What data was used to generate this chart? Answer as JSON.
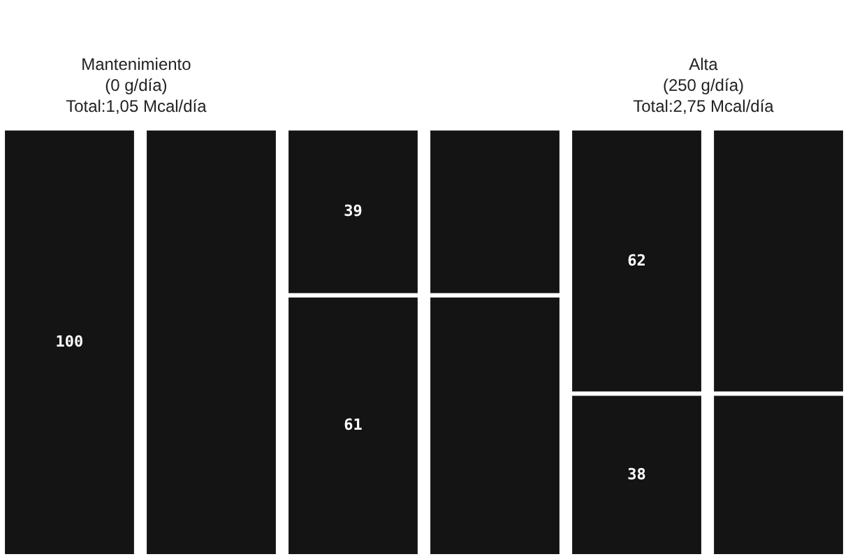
{
  "chart_data": {
    "type": "bar",
    "stacked": true,
    "categories": [
      null,
      null,
      null,
      null,
      null,
      null
    ],
    "series": [
      {
        "color": "#141414",
        "values": [
          100,
          100,
          61,
          61,
          38,
          38
        ],
        "value_labels": [
          "100",
          null,
          "61",
          null,
          "38",
          null
        ]
      },
      {
        "color": "#141414",
        "values": [
          null,
          null,
          39,
          39,
          62,
          62
        ],
        "value_labels": [
          null,
          null,
          "39",
          null,
          "62",
          null
        ]
      }
    ],
    "annotations": [
      "Mantenimiento\n(0 g/día)\nTotal:1,05 Mcal/día",
      "Alta\n(250 g/día)\nTotal:2,75 Mcal/día"
    ]
  }
}
